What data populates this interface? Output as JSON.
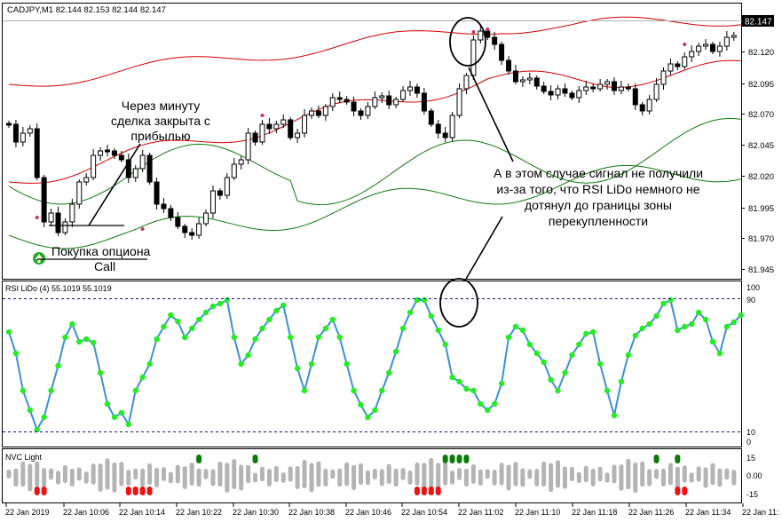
{
  "header": {
    "symbol_line": "CADJPY,M1  82.144 82.153 82.144 82.147",
    "current_price": "82.147"
  },
  "price_axis": [
    "82.120",
    "82.095",
    "82.070",
    "82.045",
    "82.020",
    "81.995",
    "81.970",
    "81.945"
  ],
  "rsi": {
    "title": "RSI LiDo (4) 55.1019 55.1019",
    "axis": [
      "100",
      "90",
      "10",
      "0"
    ]
  },
  "nvc": {
    "title": "NVC Light",
    "axis": [
      "15",
      "0.00",
      "-15"
    ]
  },
  "time_axis": [
    "22 Jan 2019",
    "22 Jan 10:06",
    "22 Jan 10:14",
    "22 Jan 10:22",
    "22 Jan 10:30",
    "22 Jan 10:38",
    "22 Jan 10:46",
    "22 Jan 10:54",
    "22 Jan 11:02",
    "22 Jan 11:10",
    "22 Jan 11:18",
    "22 Jan 11:26",
    "22 Jan 11:34",
    "22 Jan 11:"
  ],
  "annotations": {
    "closed_lines": [
      "Через минуту",
      "сделка закрыта с",
      "прибылью"
    ],
    "option_buy": "Покупка опциона",
    "call": "Call",
    "no_signal": [
      "А в этом случае сигнал не получили",
      "из-за того, что RSI LiDo немного не",
      "дотянул до границы зоны",
      "перекупленности"
    ]
  },
  "colors": {
    "bull_candle": "#ffffff",
    "bear_candle": "#000000",
    "upper_band": "#d40000",
    "lower_band": "#107a10",
    "rsi_line": "#3c8fd8",
    "rsi_dot": "#22ee22",
    "level_line": "#1010a0",
    "nvc_gray": "#b4b4b4",
    "nvc_green": "#0a7a0a",
    "nvc_red": "#ee1111",
    "arrow_green": "#22aa22"
  }
}
